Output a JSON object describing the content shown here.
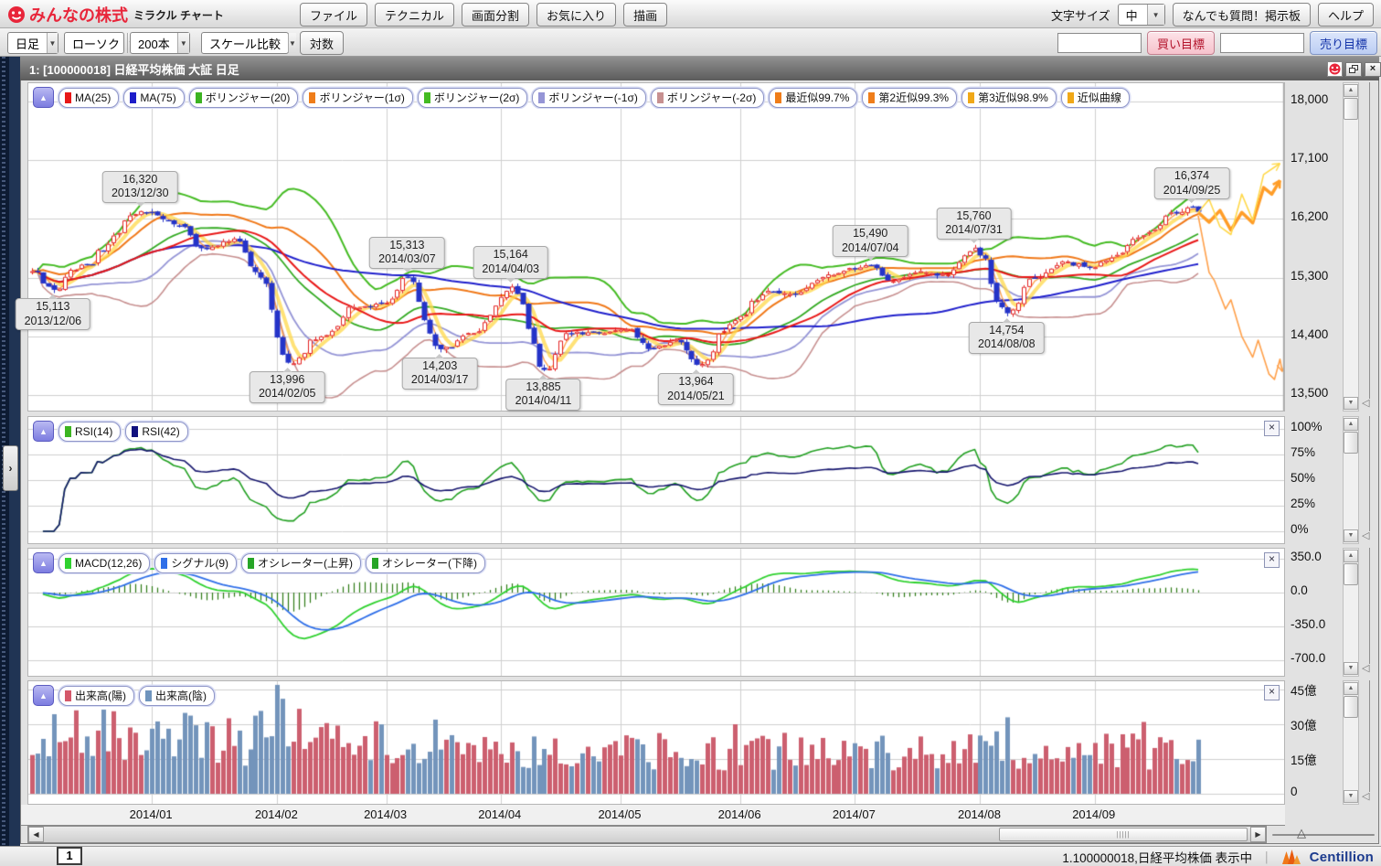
{
  "header": {
    "logo_main": "みんなの株式",
    "logo_sub": "ミラクル チャート",
    "menus": [
      "ファイル",
      "テクニカル",
      "画面分割",
      "お気に入り",
      "描画"
    ],
    "menu_names": [
      "file",
      "technical",
      "split-screen",
      "favorites",
      "draw"
    ],
    "font_size_label": "文字サイズ",
    "font_size_value": "中",
    "qa_button": "なんでも質問！掲示板",
    "help_button": "ヘルプ"
  },
  "toolbar": {
    "period": "日足",
    "chart_type": "ローソク",
    "bar_count": "200本",
    "scale_compare": "スケール比較",
    "log_button": "対数",
    "buy_target_label": "買い目標",
    "sell_target_label": "売り目標",
    "buy_input": "",
    "sell_input": ""
  },
  "window_title": "1:  [100000018] 日経平均株価 大証 日足",
  "panels": {
    "main": {
      "chips": [
        {
          "label": "MA(25)",
          "color": "#e81717"
        },
        {
          "label": "MA(75)",
          "color": "#1d1dc9"
        },
        {
          "label": "ボリンジャー(20)",
          "color": "#3cb322"
        },
        {
          "label": "ボリンジャー(1σ)",
          "color": "#ef7d1a"
        },
        {
          "label": "ボリンジャー(2σ)",
          "color": "#44bb22"
        },
        {
          "label": "ボリンジャー(-1σ)",
          "color": "#9595d6"
        },
        {
          "label": "ボリンジャー(-2σ)",
          "color": "#c79090"
        },
        {
          "label": "最近似99.7%",
          "color": "#ef7d1a"
        },
        {
          "label": "第2近似99.3%",
          "color": "#ef7d1a"
        },
        {
          "label": "第3近似98.9%",
          "color": "#f0a818"
        },
        {
          "label": "近似曲線",
          "color": "#f0a818"
        }
      ]
    },
    "rsi": {
      "chips": [
        {
          "label": "RSI(14)",
          "color": "#3cb520"
        },
        {
          "label": "RSI(42)",
          "color": "#10107e"
        }
      ]
    },
    "macd": {
      "chips": [
        {
          "label": "MACD(12,26)",
          "color": "#2fd12f"
        },
        {
          "label": "シグナル(9)",
          "color": "#2f6fe8"
        },
        {
          "label": "オシレーター(上昇)",
          "color": "#27a527"
        },
        {
          "label": "オシレーター(下降)",
          "color": "#27a527"
        }
      ]
    },
    "volume": {
      "chips": [
        {
          "label": "出来高(陽)",
          "color": "#d4586a"
        },
        {
          "label": "出来高(陰)",
          "color": "#6f94bd"
        }
      ]
    }
  },
  "chart_data": {
    "type": "candlestick",
    "symbol": "日経平均株価",
    "exchange": "大証",
    "period": "日足",
    "bars_visible": 200,
    "date_range": [
      "2013-12-02",
      "2014-09-26"
    ],
    "x_labels": [
      "2014/01",
      "2014/02",
      "2014/03",
      "2014/04",
      "2014/05",
      "2014/06",
      "2014/07",
      "2014/08",
      "2014/09"
    ],
    "main": {
      "y_ticks": [
        {
          "v": 18000,
          "label": "18,000"
        },
        {
          "v": 17100,
          "label": "17,100"
        },
        {
          "v": 16200,
          "label": "16,200"
        },
        {
          "v": 15300,
          "label": "15,300"
        },
        {
          "v": 14400,
          "label": "14,400"
        },
        {
          "v": 13500,
          "label": "13,500"
        }
      ],
      "candle_colors": {
        "up_stroke": "#e32222",
        "up_fill": "#ffffff",
        "down": "#2433c8"
      },
      "overlays": [
        {
          "name": "MA(25)",
          "color": "#e81717"
        },
        {
          "name": "MA(75)",
          "color": "#2020cc"
        },
        {
          "name": "ボリンジャー(20)",
          "color": "#33aa22"
        },
        {
          "name": "ボリンジャー(1σ)",
          "color": "#f07818"
        },
        {
          "name": "ボリンジャー(2σ)",
          "color": "#44bb22"
        },
        {
          "name": "ボリンジャー(-1σ)",
          "color": "#9595d6"
        },
        {
          "name": "ボリンジャー(-2σ)",
          "color": "#c79090"
        },
        {
          "name": "近似曲線",
          "color": "#ffd84a"
        },
        {
          "name": "最近似",
          "color": "#ff9a3c"
        }
      ],
      "key_points": [
        {
          "date": "2013-12-02",
          "value": 15400
        },
        {
          "date": "2013-12-06",
          "value": 15113
        },
        {
          "date": "2013-12-13",
          "value": 15500
        },
        {
          "date": "2013-12-30",
          "value": 16320
        },
        {
          "date": "2014-01-08",
          "value": 16100
        },
        {
          "date": "2014-01-14",
          "value": 15750
        },
        {
          "date": "2014-01-22",
          "value": 15900
        },
        {
          "date": "2014-01-29",
          "value": 15300
        },
        {
          "date": "2014-02-05",
          "value": 13996
        },
        {
          "date": "2014-02-13",
          "value": 14400
        },
        {
          "date": "2014-02-21",
          "value": 14850
        },
        {
          "date": "2014-02-28",
          "value": 14900
        },
        {
          "date": "2014-03-07",
          "value": 15313
        },
        {
          "date": "2014-03-17",
          "value": 14203
        },
        {
          "date": "2014-03-25",
          "value": 14450
        },
        {
          "date": "2014-04-03",
          "value": 15164
        },
        {
          "date": "2014-04-11",
          "value": 13885
        },
        {
          "date": "2014-04-17",
          "value": 14450
        },
        {
          "date": "2014-04-25",
          "value": 14450
        },
        {
          "date": "2014-05-02",
          "value": 14500
        },
        {
          "date": "2014-05-09",
          "value": 14200
        },
        {
          "date": "2014-05-15",
          "value": 14350
        },
        {
          "date": "2014-05-21",
          "value": 13964
        },
        {
          "date": "2014-05-30",
          "value": 14650
        },
        {
          "date": "2014-06-09",
          "value": 15100
        },
        {
          "date": "2014-06-16",
          "value": 15050
        },
        {
          "date": "2014-06-24",
          "value": 15350
        },
        {
          "date": "2014-07-04",
          "value": 15490
        },
        {
          "date": "2014-07-10",
          "value": 15250
        },
        {
          "date": "2014-07-17",
          "value": 15400
        },
        {
          "date": "2014-07-24",
          "value": 15350
        },
        {
          "date": "2014-07-31",
          "value": 15760
        },
        {
          "date": "2014-08-08",
          "value": 14754
        },
        {
          "date": "2014-08-15",
          "value": 15300
        },
        {
          "date": "2014-08-22",
          "value": 15550
        },
        {
          "date": "2014-08-29",
          "value": 15450
        },
        {
          "date": "2014-09-05",
          "value": 15650
        },
        {
          "date": "2014-09-12",
          "value": 15950
        },
        {
          "date": "2014-09-19",
          "value": 16300
        },
        {
          "date": "2014-09-25",
          "value": 16374
        },
        {
          "date": "2014-09-26",
          "value": 16310
        }
      ],
      "annotations": [
        {
          "price_label": "16,320",
          "date_label": "2013/12/30",
          "date": "2013-12-30",
          "value": 16320,
          "side": "above"
        },
        {
          "price_label": "15,113",
          "date_label": "2013/12/06",
          "date": "2013-12-06",
          "value": 15113,
          "side": "below"
        },
        {
          "price_label": "15,313",
          "date_label": "2014/03/07",
          "date": "2014-03-07",
          "value": 15313,
          "side": "above"
        },
        {
          "price_label": "15,164",
          "date_label": "2014/04/03",
          "date": "2014-04-03",
          "value": 15164,
          "side": "above"
        },
        {
          "price_label": "13,996",
          "date_label": "2014/02/05",
          "date": "2014-02-05",
          "value": 13996,
          "side": "below"
        },
        {
          "price_label": "14,203",
          "date_label": "2014/03/17",
          "date": "2014-03-17",
          "value": 14203,
          "side": "below"
        },
        {
          "price_label": "13,885",
          "date_label": "2014/04/11",
          "date": "2014-04-11",
          "value": 13885,
          "side": "below"
        },
        {
          "price_label": "13,964",
          "date_label": "2014/05/21",
          "date": "2014-05-21",
          "value": 13964,
          "side": "below"
        },
        {
          "price_label": "15,490",
          "date_label": "2014/07/04",
          "date": "2014-07-04",
          "value": 15490,
          "side": "above"
        },
        {
          "price_label": "15,760",
          "date_label": "2014/07/31",
          "date": "2014-07-31",
          "value": 15760,
          "side": "above"
        },
        {
          "price_label": "14,754",
          "date_label": "2014/08/08",
          "date": "2014-08-08",
          "value": 14754,
          "side": "below"
        },
        {
          "price_label": "16,374",
          "date_label": "2014/09/25",
          "date": "2014-09-25",
          "value": 16374,
          "side": "above"
        }
      ],
      "projections": [
        {
          "name": "近似曲線-上方",
          "color": "#ff9d28",
          "width": 3.5,
          "points": [
            [
              0,
              16300
            ],
            [
              2,
              16150
            ],
            [
              4,
              16330
            ],
            [
              6,
              16030
            ],
            [
              8,
              16300
            ],
            [
              10,
              16140
            ],
            [
              12,
              16680
            ],
            [
              13.5,
              16580
            ],
            [
              15,
              16790
            ]
          ]
        },
        {
          "name": "第3近似-上方",
          "color": "#ffd84a",
          "width": 1.6,
          "points": [
            [
              0,
              16300
            ],
            [
              2,
              16500
            ],
            [
              4,
              16080
            ],
            [
              6,
              15960
            ],
            [
              8,
              16580
            ],
            [
              10,
              16180
            ],
            [
              12,
              16880
            ],
            [
              15,
              17050
            ]
          ]
        },
        {
          "name": "最近似-下方",
          "color": "#ffa04a",
          "width": 1.6,
          "points": [
            [
              0,
              16250
            ],
            [
              2,
              15380
            ],
            [
              3,
              15250
            ],
            [
              5,
              14820
            ],
            [
              6,
              14960
            ],
            [
              8,
              14400
            ],
            [
              10,
              14080
            ],
            [
              11,
              14340
            ],
            [
              13,
              13820
            ],
            [
              14,
              13740
            ],
            [
              15,
              14050
            ],
            [
              15.8,
              13860
            ]
          ]
        }
      ]
    },
    "rsi": {
      "y_ticks": [
        {
          "v": 100,
          "label": "100%"
        },
        {
          "v": 75,
          "label": "75%"
        },
        {
          "v": 50,
          "label": "50%"
        },
        {
          "v": 25,
          "label": "25%"
        },
        {
          "v": 0,
          "label": "0%"
        }
      ],
      "series": [
        {
          "name": "RSI(14)",
          "period": 14,
          "color": "#22a022"
        },
        {
          "name": "RSI(42)",
          "period": 42,
          "color": "#16166e"
        }
      ]
    },
    "macd": {
      "y_ticks": [
        {
          "v": 350,
          "label": "350.0"
        },
        {
          "v": 0,
          "label": "0.0"
        },
        {
          "v": -350,
          "label": "-350.0"
        },
        {
          "v": -700,
          "label": "-700.0"
        }
      ],
      "params": {
        "fast": 12,
        "slow": 26,
        "signal": 9
      },
      "colors": {
        "macd": "#2fd12f",
        "signal": "#2f6fe8",
        "histogram": "#2d7a15"
      }
    },
    "volume": {
      "y_ticks": [
        {
          "v": 45,
          "label": "45億"
        },
        {
          "v": 30,
          "label": "30億"
        },
        {
          "v": 15,
          "label": "15億"
        },
        {
          "v": 0,
          "label": "0"
        }
      ],
      "colors": {
        "up": "#cc5f6f",
        "down": "#7394bb"
      },
      "spikes": {
        "2013-12-12": 36,
        "2014-02-03": 47,
        "2014-02-04": 41,
        "2014-03-14": 32,
        "2014-05-30": 30,
        "2014-08-08": 33,
        "2014-09-12": 31
      }
    }
  },
  "icons": {
    "collapse_arrow": "▲",
    "chevron_down": "▼",
    "scroll_up": "▲",
    "scroll_down": "▼",
    "scroll_left": "◀",
    "scroll_right": "▶",
    "close": "×",
    "expand_chevron": "›",
    "resize_handle": "◁",
    "slider_handle": "△",
    "grip": "|||||",
    "separator": "｜"
  },
  "statusbar": {
    "tab": "1",
    "status": "1.100000018,日経平均株価 表示中",
    "brand": "Centillion"
  }
}
